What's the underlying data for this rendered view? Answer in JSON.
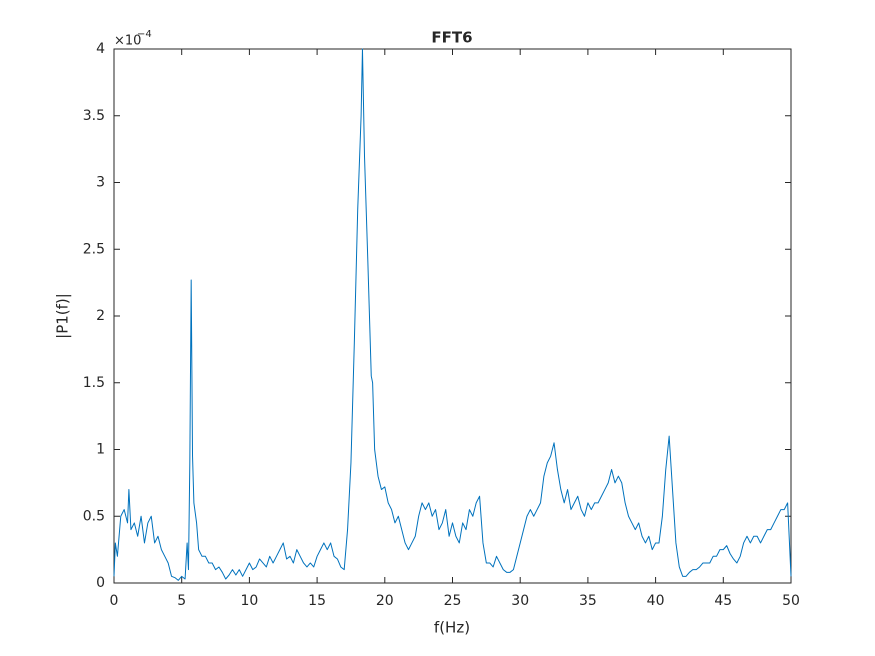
{
  "chart_data": {
    "type": "line",
    "title": "FFT6",
    "x_label": "f(Hz)",
    "y_label": "|P1(f)|",
    "y_multiplier": {
      "base": "×10",
      "exponent": "−4"
    },
    "color": "#0072bd",
    "x": [
      0,
      0.1,
      0.25,
      0.5,
      0.75,
      1.0,
      1.1,
      1.25,
      1.5,
      1.75,
      2,
      2.25,
      2.5,
      2.75,
      3,
      3.25,
      3.5,
      3.75,
      4,
      4.25,
      4.5,
      4.75,
      5,
      5.25,
      5.4,
      5.5,
      5.6,
      5.7,
      5.8,
      5.9,
      6.1,
      6.25,
      6.5,
      6.75,
      7,
      7.25,
      7.5,
      7.75,
      8,
      8.25,
      8.5,
      8.75,
      9,
      9.25,
      9.5,
      9.75,
      10,
      10.25,
      10.5,
      10.75,
      11,
      11.25,
      11.5,
      11.75,
      12,
      12.25,
      12.5,
      12.75,
      13,
      13.25,
      13.5,
      13.75,
      14,
      14.25,
      14.5,
      14.75,
      15,
      15.25,
      15.5,
      15.75,
      16,
      16.25,
      16.5,
      16.75,
      17,
      17.25,
      17.5,
      17.75,
      18,
      18.25,
      18.35,
      18.5,
      18.75,
      19,
      19.1,
      19.25,
      19.5,
      19.75,
      20,
      20.25,
      20.5,
      20.75,
      21,
      21.25,
      21.5,
      21.75,
      22,
      22.25,
      22.5,
      22.75,
      23,
      23.25,
      23.5,
      23.75,
      24,
      24.25,
      24.5,
      24.75,
      25,
      25.25,
      25.5,
      25.75,
      26,
      26.25,
      26.5,
      26.75,
      27,
      27.25,
      27.5,
      27.75,
      28,
      28.25,
      28.5,
      28.75,
      29,
      29.25,
      29.5,
      29.75,
      30,
      30.25,
      30.5,
      30.75,
      31,
      31.25,
      31.5,
      31.75,
      32,
      32.25,
      32.5,
      32.75,
      33,
      33.25,
      33.5,
      33.75,
      34,
      34.25,
      34.5,
      34.75,
      35,
      35.25,
      35.5,
      35.75,
      36,
      36.25,
      36.5,
      36.75,
      37,
      37.25,
      37.5,
      37.75,
      38,
      38.25,
      38.5,
      38.75,
      39,
      39.25,
      39.5,
      39.75,
      40,
      40.25,
      40.5,
      40.75,
      41,
      41.25,
      41.5,
      41.75,
      42,
      42.25,
      42.5,
      42.75,
      43,
      43.25,
      43.5,
      43.75,
      44,
      44.25,
      44.5,
      44.75,
      45,
      45.25,
      45.5,
      45.75,
      46,
      46.25,
      46.5,
      46.75,
      47,
      47.25,
      47.5,
      47.75,
      48,
      48.25,
      48.5,
      48.75,
      49,
      49.25,
      49.5,
      49.75,
      50
    ],
    "values": [
      0.05,
      0.3,
      0.2,
      0.5,
      0.55,
      0.45,
      0.7,
      0.4,
      0.45,
      0.35,
      0.5,
      0.3,
      0.45,
      0.5,
      0.3,
      0.35,
      0.25,
      0.2,
      0.15,
      0.05,
      0.04,
      0.02,
      0.05,
      0.03,
      0.3,
      0.1,
      0.9,
      2.27,
      0.95,
      0.6,
      0.45,
      0.25,
      0.2,
      0.2,
      0.15,
      0.15,
      0.1,
      0.12,
      0.08,
      0.03,
      0.06,
      0.1,
      0.06,
      0.1,
      0.05,
      0.1,
      0.15,
      0.1,
      0.12,
      0.18,
      0.15,
      0.12,
      0.2,
      0.15,
      0.2,
      0.25,
      0.3,
      0.18,
      0.2,
      0.15,
      0.25,
      0.2,
      0.15,
      0.12,
      0.15,
      0.12,
      0.2,
      0.25,
      0.3,
      0.25,
      0.3,
      0.2,
      0.18,
      0.12,
      0.1,
      0.4,
      0.9,
      1.8,
      2.8,
      3.5,
      4.0,
      3.2,
      2.4,
      1.55,
      1.5,
      1.0,
      0.8,
      0.7,
      0.72,
      0.6,
      0.55,
      0.45,
      0.5,
      0.4,
      0.3,
      0.25,
      0.3,
      0.35,
      0.5,
      0.6,
      0.55,
      0.6,
      0.5,
      0.55,
      0.4,
      0.45,
      0.55,
      0.35,
      0.45,
      0.35,
      0.3,
      0.45,
      0.4,
      0.55,
      0.5,
      0.6,
      0.65,
      0.3,
      0.15,
      0.15,
      0.12,
      0.2,
      0.15,
      0.1,
      0.08,
      0.08,
      0.1,
      0.2,
      0.3,
      0.4,
      0.5,
      0.55,
      0.5,
      0.55,
      0.6,
      0.8,
      0.9,
      0.95,
      1.05,
      0.85,
      0.7,
      0.6,
      0.7,
      0.55,
      0.6,
      0.65,
      0.55,
      0.5,
      0.6,
      0.55,
      0.6,
      0.6,
      0.65,
      0.7,
      0.75,
      0.85,
      0.75,
      0.8,
      0.75,
      0.6,
      0.5,
      0.45,
      0.4,
      0.45,
      0.35,
      0.3,
      0.35,
      0.25,
      0.3,
      0.3,
      0.5,
      0.85,
      1.1,
      0.7,
      0.3,
      0.12,
      0.05,
      0.05,
      0.08,
      0.1,
      0.1,
      0.12,
      0.15,
      0.15,
      0.15,
      0.2,
      0.2,
      0.25,
      0.25,
      0.28,
      0.22,
      0.18,
      0.15,
      0.2,
      0.3,
      0.35,
      0.3,
      0.35,
      0.35,
      0.3,
      0.35,
      0.4,
      0.4,
      0.45,
      0.5,
      0.55,
      0.55,
      0.6,
      0.05
    ],
    "xlim": [
      0,
      50
    ],
    "ylim": [
      0,
      4
    ],
    "xticks": [
      0,
      5,
      10,
      15,
      20,
      25,
      30,
      35,
      40,
      45,
      50
    ],
    "yticks": [
      0,
      0.5,
      1,
      1.5,
      2,
      2.5,
      3,
      3.5,
      4
    ],
    "grid": false
  }
}
